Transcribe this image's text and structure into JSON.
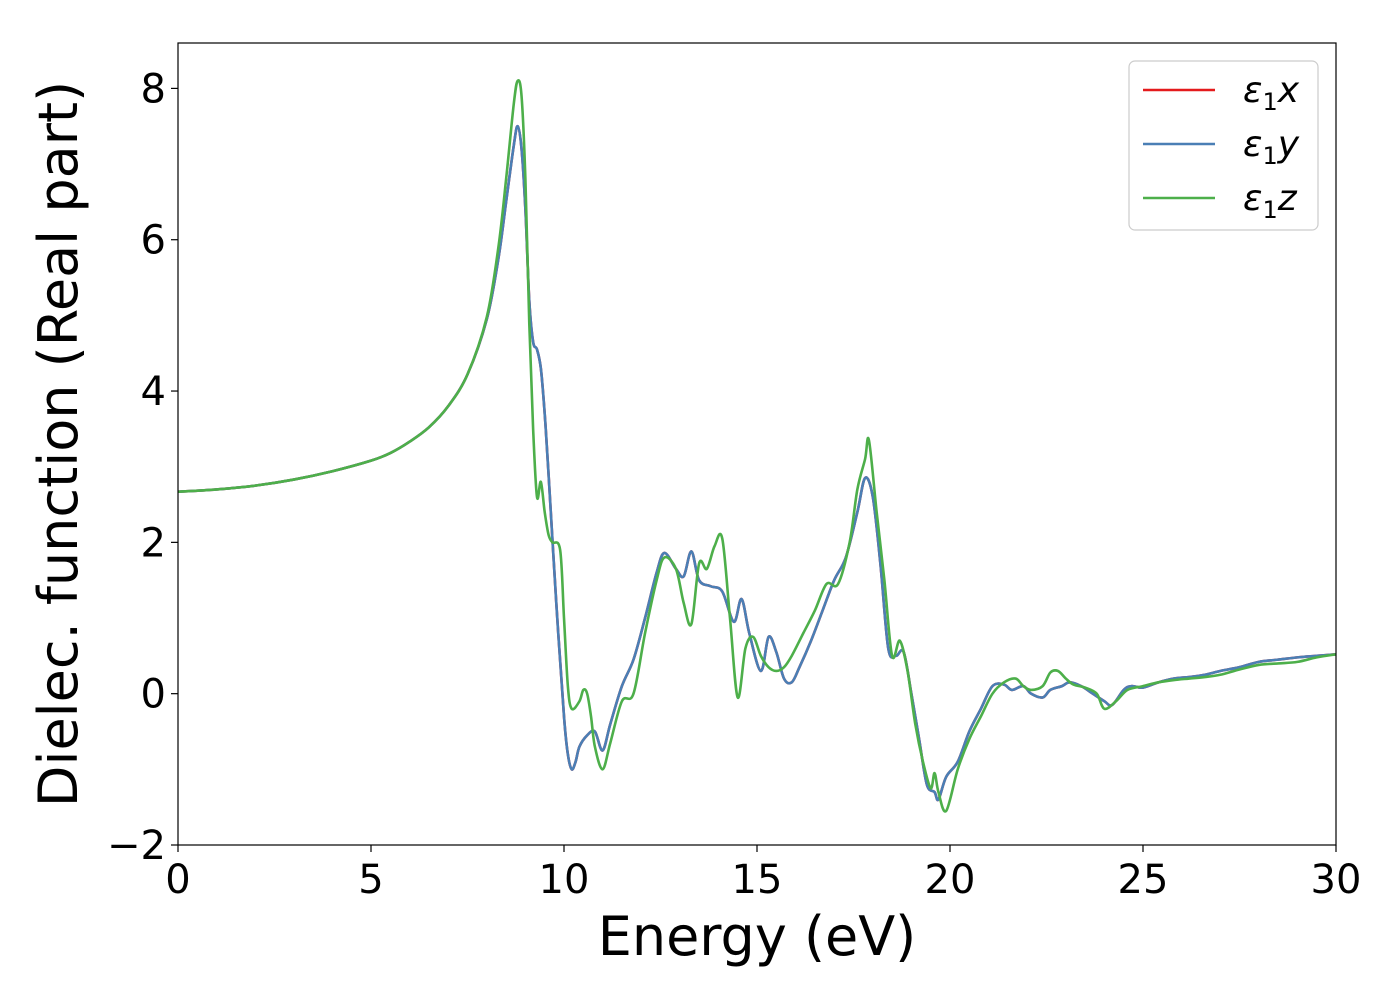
{
  "chart_data": {
    "type": "line",
    "xlabel": "Energy (eV)",
    "ylabel": "Dielec. function (Real part)",
    "xlim": [
      0,
      30
    ],
    "ylim": [
      -2,
      8.6
    ],
    "xticks": [
      0,
      5,
      10,
      15,
      20,
      25,
      30
    ],
    "yticks": [
      -2,
      0,
      2,
      4,
      6,
      8
    ],
    "grid": false,
    "legend_position": "top-right",
    "series": [
      {
        "name": "ε1x",
        "symbol": "ε",
        "subscript": "1",
        "suffix": "x",
        "color": "#e41a1c",
        "x": [
          0,
          1,
          2,
          3,
          4,
          5,
          5.5,
          6,
          6.5,
          7,
          7.5,
          8,
          8.3,
          8.5,
          8.7,
          8.8,
          8.9,
          9.0,
          9.1,
          9.2,
          9.3,
          9.4,
          9.5,
          9.6,
          9.8,
          10.0,
          10.1,
          10.2,
          10.3,
          10.4,
          10.6,
          10.8,
          11.0,
          11.2,
          11.5,
          11.8,
          12.1,
          12.4,
          12.6,
          12.9,
          13.1,
          13.3,
          13.5,
          13.8,
          14.1,
          14.4,
          14.6,
          14.8,
          15.1,
          15.3,
          15.5,
          15.7,
          15.9,
          16.1,
          16.4,
          16.7,
          17.0,
          17.3,
          17.6,
          17.8,
          18.0,
          18.2,
          18.4,
          18.6,
          18.8,
          19.0,
          19.2,
          19.4,
          19.6,
          19.7,
          19.9,
          20.2,
          20.5,
          20.8,
          21.1,
          21.4,
          21.6,
          21.9,
          22.1,
          22.4,
          22.6,
          22.9,
          23.1,
          23.4,
          23.7,
          24.0,
          24.2,
          24.5,
          24.7,
          25.0,
          25.4,
          25.8,
          26.2,
          26.6,
          27.0,
          27.5,
          28.0,
          28.5,
          29.0,
          29.5,
          30.0
        ],
        "values": [
          2.67,
          2.7,
          2.75,
          2.83,
          2.94,
          3.08,
          3.18,
          3.33,
          3.52,
          3.8,
          4.22,
          4.95,
          5.75,
          6.5,
          7.25,
          7.5,
          7.2,
          6.4,
          5.2,
          4.65,
          4.55,
          4.3,
          3.7,
          2.9,
          1.2,
          -0.3,
          -0.8,
          -1.0,
          -0.9,
          -0.7,
          -0.55,
          -0.5,
          -0.75,
          -0.4,
          0.1,
          0.45,
          1.0,
          1.6,
          1.86,
          1.65,
          1.55,
          1.88,
          1.5,
          1.42,
          1.35,
          0.95,
          1.25,
          0.8,
          0.3,
          0.75,
          0.55,
          0.2,
          0.15,
          0.35,
          0.7,
          1.1,
          1.5,
          1.8,
          2.4,
          2.85,
          2.6,
          1.7,
          0.6,
          0.5,
          0.55,
          0.0,
          -0.6,
          -1.2,
          -1.3,
          -1.4,
          -1.1,
          -0.9,
          -0.5,
          -0.2,
          0.1,
          0.12,
          0.05,
          0.1,
          0.0,
          -0.05,
          0.05,
          0.1,
          0.15,
          0.1,
          0.0,
          -0.1,
          -0.15,
          0.05,
          0.1,
          0.08,
          0.15,
          0.2,
          0.22,
          0.25,
          0.3,
          0.35,
          0.42,
          0.45,
          0.48,
          0.5,
          0.52
        ]
      },
      {
        "name": "ε1y",
        "symbol": "ε",
        "subscript": "1",
        "suffix": "y",
        "color": "#4a7fb5",
        "x": [
          0,
          1,
          2,
          3,
          4,
          5,
          5.5,
          6,
          6.5,
          7,
          7.5,
          8,
          8.3,
          8.5,
          8.7,
          8.8,
          8.9,
          9.0,
          9.1,
          9.2,
          9.3,
          9.4,
          9.5,
          9.6,
          9.8,
          10.0,
          10.1,
          10.2,
          10.3,
          10.4,
          10.6,
          10.8,
          11.0,
          11.2,
          11.5,
          11.8,
          12.1,
          12.4,
          12.6,
          12.9,
          13.1,
          13.3,
          13.5,
          13.8,
          14.1,
          14.4,
          14.6,
          14.8,
          15.1,
          15.3,
          15.5,
          15.7,
          15.9,
          16.1,
          16.4,
          16.7,
          17.0,
          17.3,
          17.6,
          17.8,
          18.0,
          18.2,
          18.4,
          18.6,
          18.8,
          19.0,
          19.2,
          19.4,
          19.6,
          19.7,
          19.9,
          20.2,
          20.5,
          20.8,
          21.1,
          21.4,
          21.6,
          21.9,
          22.1,
          22.4,
          22.6,
          22.9,
          23.1,
          23.4,
          23.7,
          24.0,
          24.2,
          24.5,
          24.7,
          25.0,
          25.4,
          25.8,
          26.2,
          26.6,
          27.0,
          27.5,
          28.0,
          28.5,
          29.0,
          29.5,
          30.0
        ],
        "values": [
          2.67,
          2.7,
          2.75,
          2.83,
          2.94,
          3.08,
          3.18,
          3.33,
          3.52,
          3.8,
          4.22,
          4.95,
          5.75,
          6.5,
          7.25,
          7.5,
          7.2,
          6.4,
          5.2,
          4.65,
          4.55,
          4.3,
          3.7,
          2.9,
          1.2,
          -0.3,
          -0.8,
          -1.0,
          -0.9,
          -0.7,
          -0.55,
          -0.5,
          -0.75,
          -0.4,
          0.1,
          0.45,
          1.0,
          1.6,
          1.86,
          1.65,
          1.55,
          1.88,
          1.5,
          1.42,
          1.35,
          0.95,
          1.25,
          0.8,
          0.3,
          0.75,
          0.55,
          0.2,
          0.15,
          0.35,
          0.7,
          1.1,
          1.5,
          1.8,
          2.4,
          2.85,
          2.6,
          1.7,
          0.6,
          0.5,
          0.55,
          0.0,
          -0.6,
          -1.2,
          -1.3,
          -1.4,
          -1.1,
          -0.9,
          -0.5,
          -0.2,
          0.1,
          0.12,
          0.05,
          0.1,
          0.0,
          -0.05,
          0.05,
          0.1,
          0.15,
          0.1,
          0.0,
          -0.1,
          -0.15,
          0.05,
          0.1,
          0.08,
          0.15,
          0.2,
          0.22,
          0.25,
          0.3,
          0.35,
          0.42,
          0.45,
          0.48,
          0.5,
          0.52
        ]
      },
      {
        "name": "ε1z",
        "symbol": "ε",
        "subscript": "1",
        "suffix": "z",
        "color": "#4daf4a",
        "x": [
          0,
          1,
          2,
          3,
          4,
          5,
          5.5,
          6,
          6.5,
          7,
          7.5,
          8,
          8.3,
          8.5,
          8.7,
          8.8,
          8.9,
          9.0,
          9.1,
          9.2,
          9.3,
          9.4,
          9.5,
          9.6,
          9.7,
          9.9,
          10.0,
          10.1,
          10.2,
          10.4,
          10.5,
          10.6,
          10.7,
          10.8,
          11.0,
          11.2,
          11.5,
          11.8,
          12.1,
          12.4,
          12.6,
          12.9,
          13.1,
          13.3,
          13.5,
          13.7,
          13.9,
          14.1,
          14.3,
          14.5,
          14.7,
          14.9,
          15.1,
          15.3,
          15.5,
          15.7,
          15.9,
          16.2,
          16.5,
          16.8,
          17.1,
          17.4,
          17.6,
          17.8,
          17.9,
          18.1,
          18.3,
          18.5,
          18.7,
          18.9,
          19.1,
          19.3,
          19.5,
          19.6,
          19.7,
          19.9,
          20.2,
          20.5,
          20.8,
          21.1,
          21.4,
          21.7,
          21.9,
          22.1,
          22.4,
          22.6,
          22.8,
          23.0,
          23.2,
          23.5,
          23.8,
          24.0,
          24.3,
          24.6,
          25.0,
          25.4,
          25.8,
          26.2,
          26.6,
          27.0,
          27.5,
          28.0,
          28.5,
          29.0,
          29.5,
          30.0
        ],
        "values": [
          2.67,
          2.7,
          2.75,
          2.83,
          2.94,
          3.08,
          3.18,
          3.33,
          3.52,
          3.8,
          4.22,
          4.98,
          5.9,
          6.8,
          7.8,
          8.1,
          7.9,
          6.8,
          4.9,
          3.5,
          2.6,
          2.8,
          2.4,
          2.1,
          2.0,
          1.9,
          1.0,
          0.1,
          -0.2,
          -0.1,
          0.05,
          0.0,
          -0.3,
          -0.7,
          -1.0,
          -0.65,
          -0.1,
          0.0,
          0.8,
          1.5,
          1.8,
          1.65,
          1.2,
          0.92,
          1.72,
          1.65,
          1.95,
          2.05,
          1.0,
          -0.05,
          0.6,
          0.75,
          0.5,
          0.35,
          0.3,
          0.35,
          0.5,
          0.8,
          1.1,
          1.45,
          1.45,
          2.0,
          2.7,
          3.1,
          3.35,
          2.4,
          1.5,
          0.5,
          0.7,
          0.3,
          -0.4,
          -0.9,
          -1.25,
          -1.05,
          -1.3,
          -1.55,
          -1.0,
          -0.6,
          -0.3,
          0.0,
          0.15,
          0.2,
          0.1,
          0.05,
          0.1,
          0.28,
          0.3,
          0.2,
          0.12,
          0.08,
          0.0,
          -0.2,
          -0.1,
          0.05,
          0.1,
          0.15,
          0.18,
          0.2,
          0.22,
          0.25,
          0.32,
          0.38,
          0.4,
          0.42,
          0.48,
          0.52
        ]
      }
    ]
  }
}
